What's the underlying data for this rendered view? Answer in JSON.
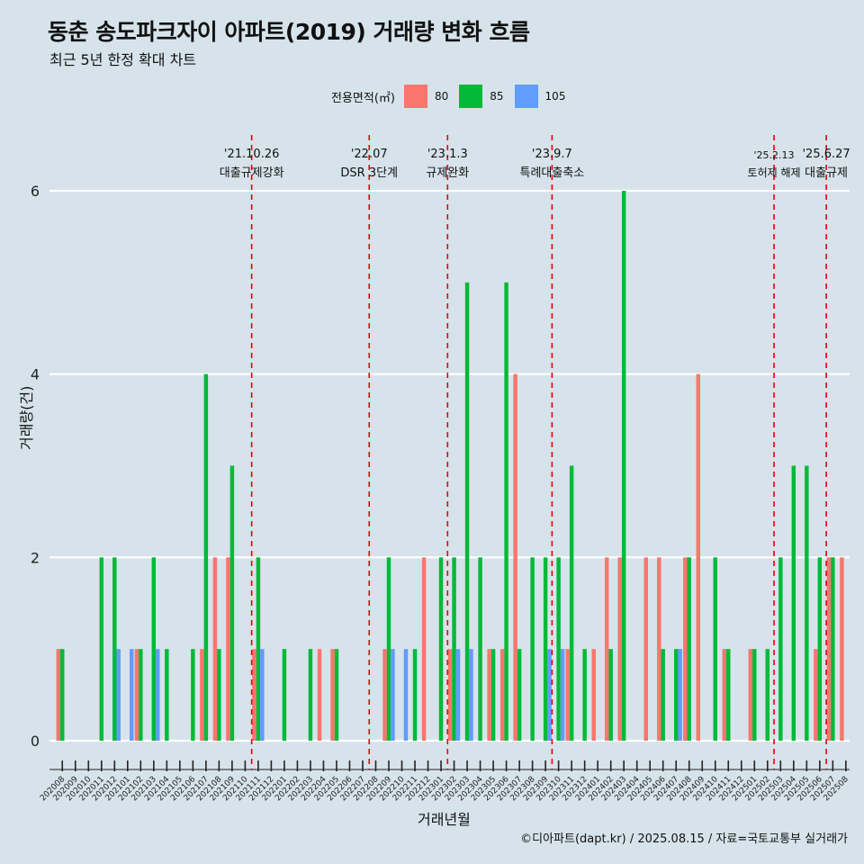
{
  "header": {
    "title": "동춘 송도파크자이 아파트(2019) 거래량 변화 흐름",
    "subtitle": "최근 5년 한정 확대 차트"
  },
  "legend": {
    "title": "전용면적(㎡)",
    "items": [
      {
        "label": "80",
        "color": "#f8766d"
      },
      {
        "label": "85",
        "color": "#00ba38"
      },
      {
        "label": "105",
        "color": "#619cff"
      }
    ]
  },
  "axes": {
    "ylabel": "거래량(건)",
    "xlabel": "거래년월"
  },
  "caption": "©디아파트(dapt.kr) / 2025.08.15 / 자료=국토교통부 실거래가",
  "chart_data": {
    "type": "bar",
    "grid": true,
    "ylim": [
      0,
      6
    ],
    "yticks": [
      0,
      2,
      4,
      6
    ],
    "categories": [
      "202008",
      "202009",
      "202010",
      "202011",
      "202012",
      "202101",
      "202102",
      "202103",
      "202104",
      "202105",
      "202106",
      "202107",
      "202108",
      "202109",
      "202110",
      "202111",
      "202112",
      "202201",
      "202202",
      "202203",
      "202204",
      "202205",
      "202206",
      "202207",
      "202208",
      "202209",
      "202210",
      "202211",
      "202212",
      "202301",
      "202302",
      "202303",
      "202304",
      "202305",
      "202306",
      "202307",
      "202308",
      "202309",
      "202310",
      "202311",
      "202312",
      "202401",
      "202402",
      "202403",
      "202404",
      "202405",
      "202406",
      "202407",
      "202408",
      "202409",
      "202410",
      "202411",
      "202412",
      "202501",
      "202502",
      "202503",
      "202504",
      "202505",
      "202506",
      "202507",
      "202508"
    ],
    "series": [
      {
        "name": "80",
        "color": "#f8766d",
        "values": [
          1,
          0,
          0,
          0,
          0,
          0,
          1,
          0,
          0,
          0,
          0,
          1,
          2,
          2,
          0,
          1,
          0,
          0,
          0,
          0,
          1,
          1,
          0,
          0,
          0,
          1,
          0,
          0,
          2,
          0,
          1,
          0,
          0,
          1,
          1,
          4,
          0,
          0,
          0,
          1,
          0,
          1,
          2,
          2,
          0,
          2,
          2,
          0,
          2,
          4,
          0,
          1,
          0,
          1,
          0,
          0,
          0,
          0,
          1,
          2,
          2
        ]
      },
      {
        "name": "85",
        "color": "#00ba38",
        "values": [
          1,
          0,
          0,
          2,
          2,
          0,
          1,
          2,
          1,
          0,
          1,
          4,
          1,
          3,
          0,
          2,
          0,
          1,
          0,
          1,
          0,
          1,
          0,
          0,
          0,
          2,
          0,
          1,
          0,
          2,
          2,
          5,
          2,
          1,
          5,
          1,
          2,
          2,
          2,
          3,
          1,
          0,
          1,
          6,
          0,
          0,
          1,
          1,
          2,
          0,
          2,
          1,
          0,
          1,
          1,
          2,
          3,
          3,
          2,
          2,
          0
        ]
      },
      {
        "name": "105",
        "color": "#619cff",
        "values": [
          0,
          0,
          0,
          0,
          1,
          1,
          0,
          1,
          0,
          0,
          0,
          0,
          0,
          0,
          0,
          1,
          0,
          0,
          0,
          0,
          0,
          0,
          0,
          0,
          0,
          1,
          1,
          0,
          0,
          0,
          1,
          1,
          0,
          0,
          0,
          0,
          0,
          1,
          1,
          0,
          0,
          0,
          0,
          0,
          0,
          0,
          0,
          1,
          0,
          0,
          0,
          0,
          0,
          0,
          0,
          0,
          0,
          0,
          0,
          0,
          0
        ]
      }
    ],
    "annotations": [
      {
        "date_label": "'21.10.26",
        "text": "대출규제강화",
        "after": "202110"
      },
      {
        "date_label": "'22.07",
        "text": "DSR 3단계",
        "after": "202207"
      },
      {
        "date_label": "'23.1.3",
        "text": "규제완화",
        "after": "202301"
      },
      {
        "date_label": "'23.9.7",
        "text": "특례대출축소",
        "after": "202309"
      },
      {
        "date_label": "'25.2.13",
        "text": "토허제 해제",
        "after": "202502"
      },
      {
        "date_label": "'25.6.27",
        "text": "대출규제",
        "after": "202506"
      }
    ]
  }
}
